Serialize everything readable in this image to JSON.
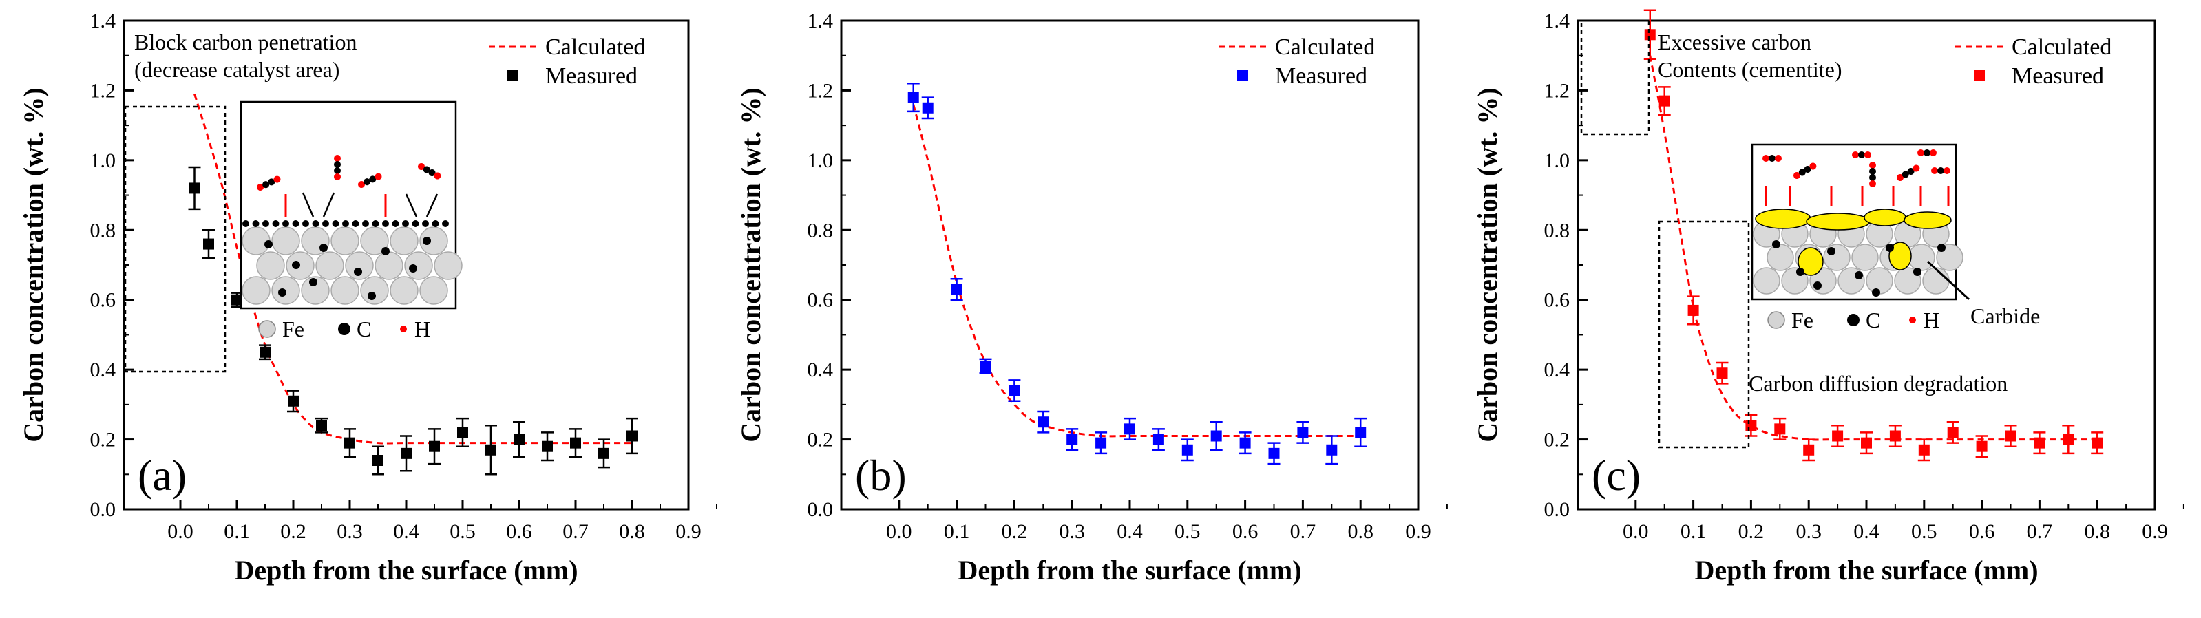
{
  "chart_data": [
    {
      "type": "scatter",
      "panel_label": "(a)",
      "xlabel": "Depth from the surface (mm)",
      "ylabel": "Carbon concentration (wt. %)",
      "xlim": [
        -0.1,
        0.9
      ],
      "ylim": [
        0.0,
        1.4
      ],
      "xticks": [
        "0.0",
        "0.1",
        "0.2",
        "0.3",
        "0.4",
        "0.5",
        "0.6",
        "0.7",
        "0.8",
        "0.9"
      ],
      "yticks": [
        "0.0",
        "0.2",
        "0.4",
        "0.6",
        "0.8",
        "1.0",
        "1.2",
        "1.4"
      ],
      "legend": {
        "placement": "top-right",
        "calculated": "Calculated",
        "measured": "Measured"
      },
      "marker_color": "#000000",
      "calc_color": "#ff0000",
      "measured": {
        "x": [
          0.025,
          0.05,
          0.1,
          0.15,
          0.2,
          0.25,
          0.3,
          0.35,
          0.4,
          0.45,
          0.5,
          0.55,
          0.6,
          0.65,
          0.7,
          0.75,
          0.8
        ],
        "y": [
          0.92,
          0.76,
          0.6,
          0.45,
          0.31,
          0.24,
          0.19,
          0.14,
          0.16,
          0.18,
          0.22,
          0.17,
          0.2,
          0.18,
          0.19,
          0.16,
          0.21
        ],
        "err": [
          0.06,
          0.04,
          0.02,
          0.02,
          0.03,
          0.02,
          0.04,
          0.04,
          0.05,
          0.05,
          0.04,
          0.07,
          0.05,
          0.04,
          0.04,
          0.04,
          0.05
        ]
      },
      "calculated": {
        "x": [
          0.025,
          0.05,
          0.075,
          0.1,
          0.125,
          0.15,
          0.175,
          0.2,
          0.225,
          0.25,
          0.3,
          0.35,
          0.4,
          0.5,
          0.6,
          0.7,
          0.8
        ],
        "y": [
          1.19,
          1.06,
          0.92,
          0.75,
          0.6,
          0.47,
          0.38,
          0.3,
          0.25,
          0.22,
          0.2,
          0.19,
          0.19,
          0.19,
          0.19,
          0.19,
          0.19
        ]
      },
      "annotations": [
        "Block carbon penetration",
        "(decrease catalyst area)"
      ],
      "inset_legend": {
        "fe": "Fe",
        "c": "C",
        "h": "H"
      }
    },
    {
      "type": "scatter",
      "panel_label": "(b)",
      "xlabel": "Depth from the surface (mm)",
      "ylabel": "Carbon concentration (wt. %)",
      "xlim": [
        -0.1,
        0.9
      ],
      "ylim": [
        0.0,
        1.4
      ],
      "xticks": [
        "0.0",
        "0.1",
        "0.2",
        "0.3",
        "0.4",
        "0.5",
        "0.6",
        "0.7",
        "0.8",
        "0.9"
      ],
      "yticks": [
        "0.0",
        "0.2",
        "0.4",
        "0.6",
        "0.8",
        "1.0",
        "1.2",
        "1.4"
      ],
      "legend": {
        "placement": "top-right",
        "calculated": "Calculated",
        "measured": "Measured"
      },
      "marker_color": "#0000ff",
      "calc_color": "#ff0000",
      "measured": {
        "x": [
          0.025,
          0.05,
          0.1,
          0.15,
          0.2,
          0.25,
          0.3,
          0.35,
          0.4,
          0.45,
          0.5,
          0.55,
          0.6,
          0.65,
          0.7,
          0.75,
          0.8
        ],
        "y": [
          1.18,
          1.15,
          0.63,
          0.41,
          0.34,
          0.25,
          0.2,
          0.19,
          0.23,
          0.2,
          0.17,
          0.21,
          0.19,
          0.16,
          0.22,
          0.17,
          0.22
        ],
        "err": [
          0.04,
          0.03,
          0.03,
          0.02,
          0.03,
          0.03,
          0.03,
          0.03,
          0.03,
          0.03,
          0.03,
          0.04,
          0.03,
          0.03,
          0.03,
          0.04,
          0.04
        ]
      },
      "calculated": {
        "x": [
          0.025,
          0.05,
          0.075,
          0.1,
          0.125,
          0.15,
          0.175,
          0.2,
          0.225,
          0.25,
          0.3,
          0.35,
          0.4,
          0.5,
          0.6,
          0.7,
          0.8
        ],
        "y": [
          1.16,
          1.0,
          0.82,
          0.65,
          0.52,
          0.42,
          0.35,
          0.3,
          0.26,
          0.24,
          0.22,
          0.21,
          0.21,
          0.21,
          0.21,
          0.21,
          0.21
        ]
      }
    },
    {
      "type": "scatter",
      "panel_label": "(c)",
      "xlabel": "Depth from the surface (mm)",
      "ylabel": "Carbon concentration (wt. %)",
      "xlim": [
        -0.1,
        0.9
      ],
      "ylim": [
        0.0,
        1.4
      ],
      "xticks": [
        "0.0",
        "0.1",
        "0.2",
        "0.3",
        "0.4",
        "0.5",
        "0.6",
        "0.7",
        "0.8",
        "0.9"
      ],
      "yticks": [
        "0.0",
        "0.2",
        "0.4",
        "0.6",
        "0.8",
        "1.0",
        "1.2",
        "1.4"
      ],
      "legend": {
        "placement": "top-right",
        "calculated": "Calculated",
        "measured": "Measured"
      },
      "marker_color": "#ff0000",
      "calc_color": "#ff0000",
      "measured": {
        "x": [
          0.025,
          0.05,
          0.1,
          0.15,
          0.2,
          0.25,
          0.3,
          0.35,
          0.4,
          0.45,
          0.5,
          0.55,
          0.6,
          0.65,
          0.7,
          0.75,
          0.8
        ],
        "y": [
          1.36,
          1.17,
          0.57,
          0.39,
          0.24,
          0.23,
          0.17,
          0.21,
          0.19,
          0.21,
          0.17,
          0.22,
          0.18,
          0.21,
          0.19,
          0.2,
          0.19
        ],
        "err": [
          0.07,
          0.04,
          0.04,
          0.03,
          0.03,
          0.03,
          0.03,
          0.03,
          0.03,
          0.03,
          0.03,
          0.03,
          0.03,
          0.03,
          0.03,
          0.04,
          0.03
        ]
      },
      "calculated": {
        "x": [
          0.025,
          0.05,
          0.075,
          0.1,
          0.125,
          0.15,
          0.175,
          0.2,
          0.225,
          0.25,
          0.3,
          0.35,
          0.4,
          0.5,
          0.6,
          0.7,
          0.8
        ],
        "y": [
          1.3,
          1.08,
          0.82,
          0.58,
          0.43,
          0.33,
          0.27,
          0.24,
          0.22,
          0.21,
          0.2,
          0.2,
          0.2,
          0.2,
          0.2,
          0.2,
          0.2
        ]
      },
      "annotations": [
        "Excessive carbon",
        "Contents (cementite)",
        "Carbon diffusion degradation",
        "Carbide"
      ],
      "inset_legend": {
        "fe": "Fe",
        "c": "C",
        "h": "H"
      }
    }
  ]
}
